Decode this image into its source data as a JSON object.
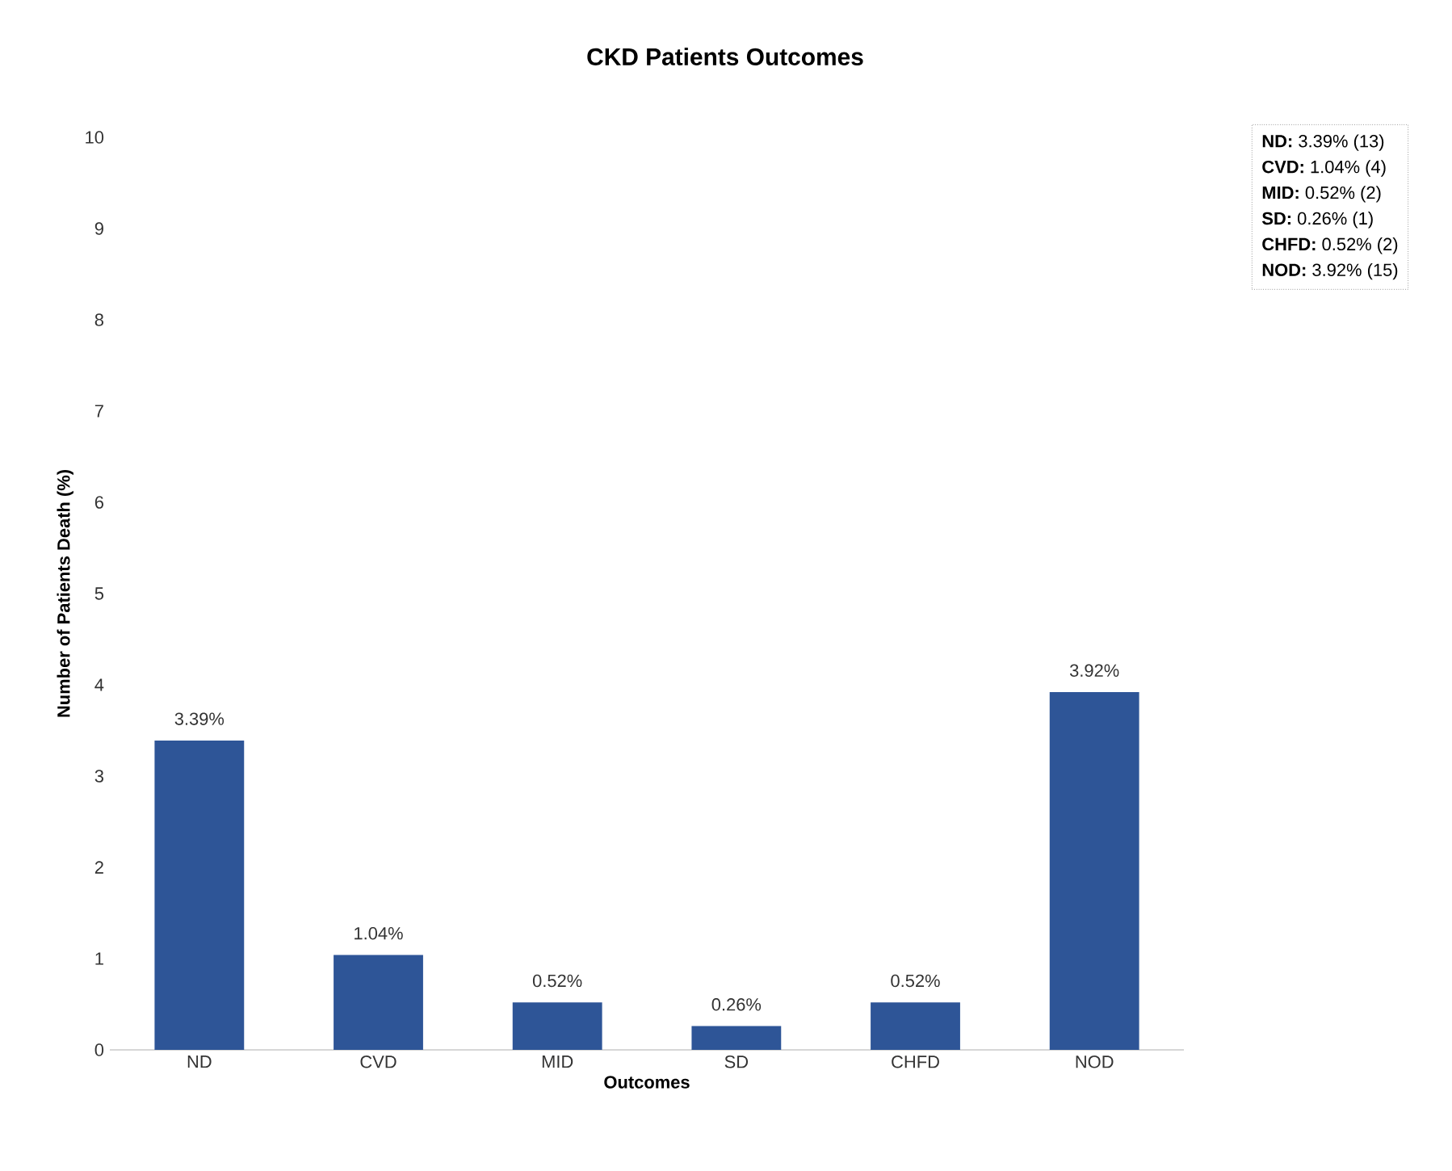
{
  "chart_data": {
    "type": "bar",
    "title": "CKD Patients Outcomes",
    "xlabel": "Outcomes",
    "ylabel": "Number of Patients Death (%)",
    "categories": [
      "ND",
      "CVD",
      "MID",
      "SD",
      "CHFD",
      "NOD"
    ],
    "values": [
      3.39,
      1.04,
      0.52,
      0.26,
      0.52,
      3.92
    ],
    "value_labels": [
      "3.39%",
      "1.04%",
      "0.52%",
      "0.26%",
      "0.52%",
      "3.92%"
    ],
    "color": "#2e5597",
    "ylim": [
      0,
      10
    ],
    "yticks": [
      0,
      1,
      2,
      3,
      4,
      5,
      6,
      7,
      8,
      9,
      10
    ],
    "grid": false,
    "annotations": [
      "**ND:** 3.39% (13)",
      "**CVD:** 1.04% (4)",
      "**MID:** 0.52% (2)",
      "**SD:** 0.26% (1)",
      "**CHFD:** 0.52% (2)",
      "**NOD:** 3.92% (15)"
    ]
  }
}
